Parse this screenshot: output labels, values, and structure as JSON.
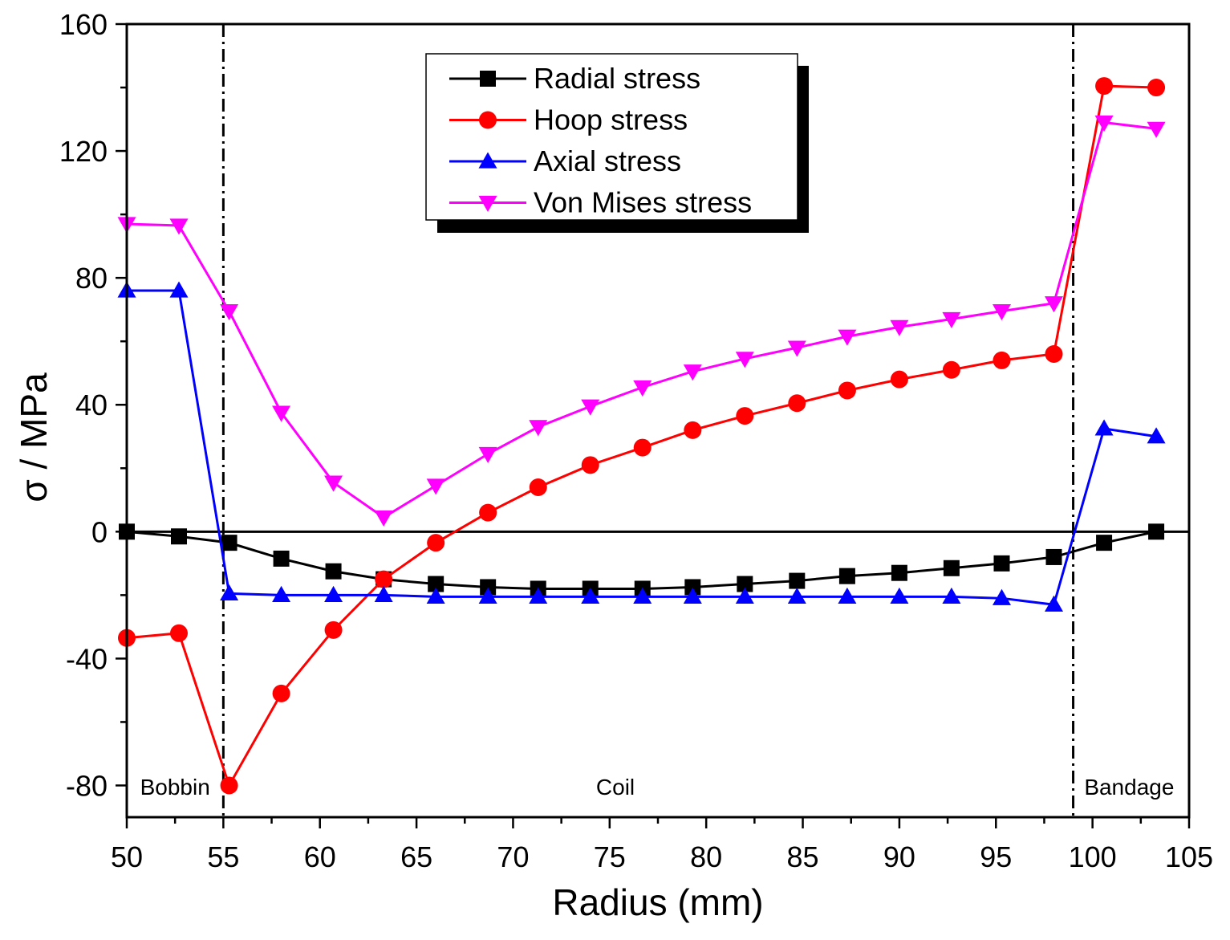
{
  "chart_data": {
    "type": "line",
    "title": "",
    "xlabel": "Radius (mm)",
    "ylabel": "σ / MPa",
    "xlim": [
      50,
      105
    ],
    "ylim": [
      -90,
      160
    ],
    "xticks": [
      50,
      55,
      60,
      65,
      70,
      75,
      80,
      85,
      90,
      95,
      100,
      105
    ],
    "yticks": [
      -80,
      -40,
      0,
      40,
      80,
      120,
      160
    ],
    "zero_line": 0,
    "boundaries": [
      55,
      99
    ],
    "regions": [
      {
        "label": "Bobbin",
        "x": 52.5
      },
      {
        "label": "Coil",
        "x": 75.3
      },
      {
        "label": "Bandage",
        "x": 101.9
      }
    ],
    "x": [
      50,
      52.7,
      55.3,
      58,
      60.7,
      63.3,
      66,
      68.7,
      71.3,
      74,
      76.7,
      79.3,
      82,
      84.7,
      87.3,
      90,
      92.7,
      95.3,
      98,
      100.6,
      103.3
    ],
    "series": [
      {
        "name": "Radial stress",
        "color": "#000000",
        "marker": "square",
        "values": [
          0,
          -1.5,
          -3.5,
          -8.5,
          -12.5,
          -15,
          -16.5,
          -17.5,
          -18,
          -18,
          -18,
          -17.5,
          -16.5,
          -15.5,
          -14,
          -13,
          -11.5,
          -10,
          -8,
          -3.5,
          0
        ]
      },
      {
        "name": "Hoop stress",
        "color": "#ff0000",
        "marker": "circle",
        "values": [
          -33.5,
          -32,
          -80,
          -51,
          -31,
          -15,
          -3.5,
          6,
          14,
          21,
          26.5,
          32,
          36.5,
          40.5,
          44.5,
          48,
          51,
          54,
          56,
          140.5,
          140
        ]
      },
      {
        "name": "Axial stress",
        "color": "#0000ff",
        "marker": "triangle-up",
        "values": [
          76,
          76,
          -19.5,
          -20,
          -20,
          -20,
          -20.5,
          -20.5,
          -20.5,
          -20.5,
          -20.5,
          -20.5,
          -20.5,
          -20.5,
          -20.5,
          -20.5,
          -20.5,
          -21,
          -23,
          32.5,
          30
        ]
      },
      {
        "name": "Von Mises stress",
        "color": "#ff00ff",
        "marker": "triangle-down",
        "values": [
          97,
          96.5,
          69.5,
          37.5,
          15.5,
          4.5,
          14.5,
          24.5,
          33,
          39.5,
          45.5,
          50.5,
          54.5,
          58,
          61.5,
          64.5,
          67,
          69.5,
          72,
          129,
          127
        ]
      }
    ],
    "legend_position": "top-center"
  }
}
